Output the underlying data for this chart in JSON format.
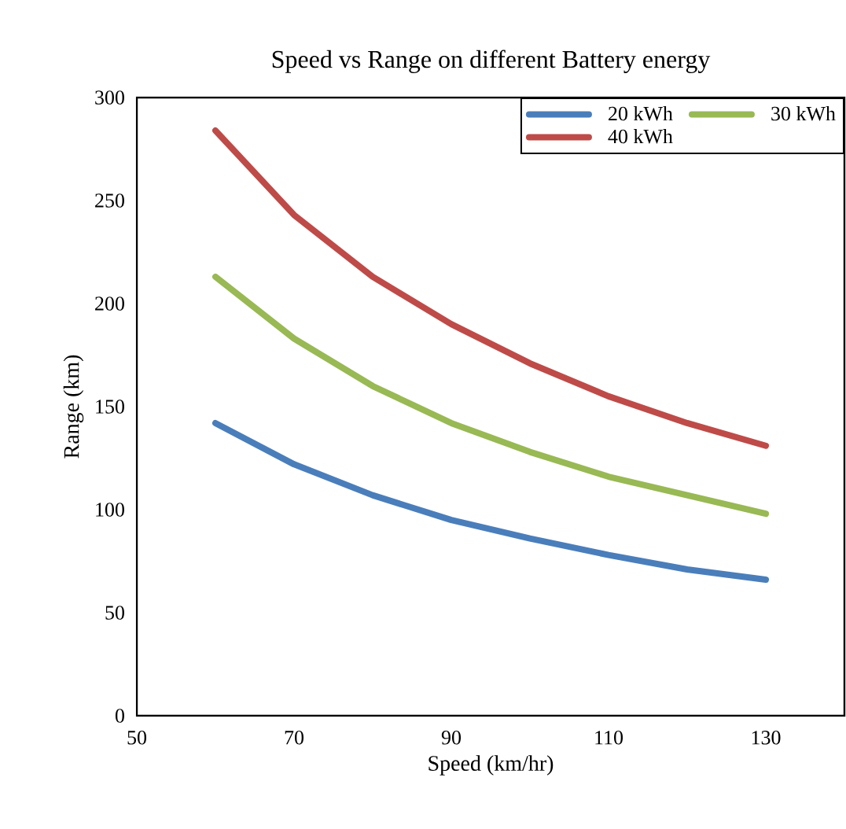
{
  "chart_data": {
    "type": "line",
    "title": "Speed vs Range on different Battery energy",
    "xlabel": "Speed (km/hr)",
    "ylabel": "Range (km)",
    "x": [
      60,
      70,
      80,
      90,
      100,
      110,
      120,
      130
    ],
    "series": [
      {
        "name": "20 kWh",
        "color": "#4a7ebb",
        "values": [
          142,
          122,
          107,
          95,
          86,
          78,
          71,
          66
        ]
      },
      {
        "name": "30 kWh",
        "color": "#98b954",
        "values": [
          213,
          183,
          160,
          142,
          128,
          116,
          107,
          98
        ]
      },
      {
        "name": "40 kWh",
        "color": "#be4b48",
        "values": [
          284,
          243,
          213,
          190,
          171,
          155,
          142,
          131
        ]
      }
    ],
    "xlim": [
      50,
      140
    ],
    "xticks": [
      50,
      70,
      90,
      110,
      130
    ],
    "ylim": [
      0,
      300
    ],
    "yticks": [
      0,
      50,
      100,
      150,
      200,
      250,
      300
    ],
    "legend": "top right",
    "grid": false,
    "marker": "none",
    "line_style": "solid"
  }
}
